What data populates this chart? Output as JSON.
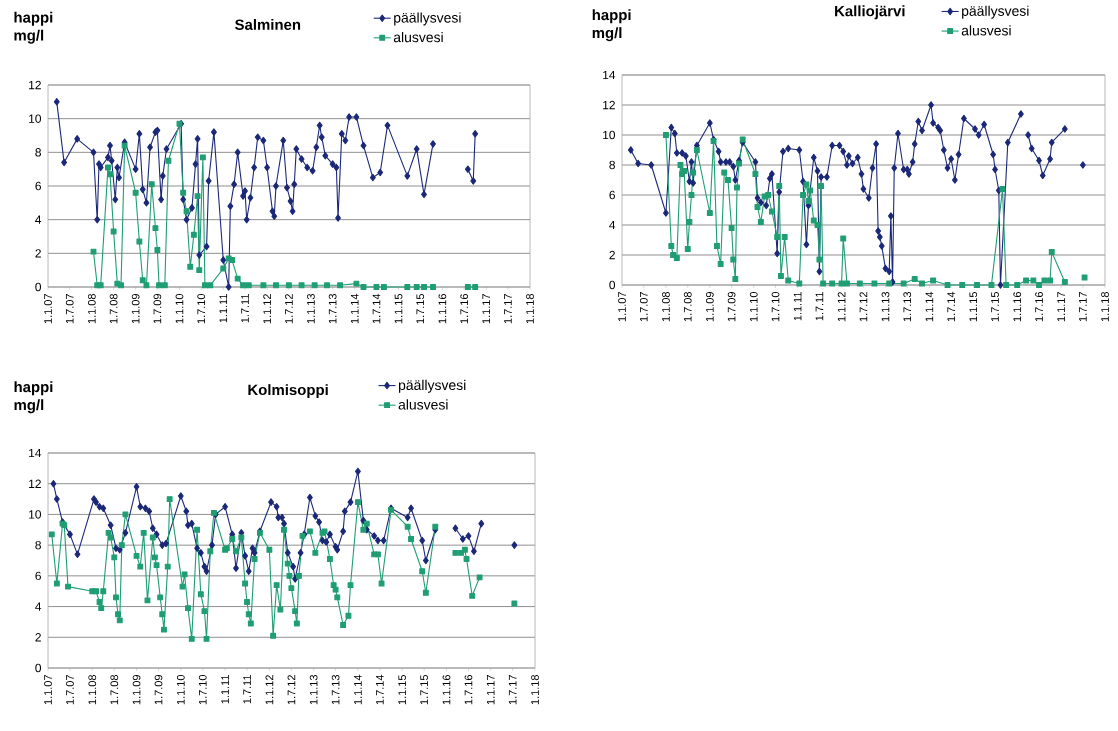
{
  "chart_data": [
    {
      "type": "line",
      "title": "Salminen",
      "ylabel": "happi mg/l",
      "xlim": [
        "2007-01-01",
        "2018-01-01"
      ],
      "xticks": [
        {
          "value": "2007-01-01",
          "label": "1.1.07"
        },
        {
          "value": "2007-07-01",
          "label": "1.7.07"
        },
        {
          "value": "2008-01-01",
          "label": "1.1.08"
        },
        {
          "value": "2008-07-01",
          "label": "1.7.08"
        },
        {
          "value": "2009-01-01",
          "label": "1.1.09"
        },
        {
          "value": "2009-07-01",
          "label": "1.7.09"
        },
        {
          "value": "2010-01-01",
          "label": "1.1.10"
        },
        {
          "value": "2010-07-01",
          "label": "1.7.10"
        },
        {
          "value": "2011-01-01",
          "label": "1.1.11"
        },
        {
          "value": "2011-07-01",
          "label": "1.7.11"
        },
        {
          "value": "2012-01-01",
          "label": "1.1.12"
        },
        {
          "value": "2012-07-01",
          "label": "1.7.12"
        },
        {
          "value": "2013-01-01",
          "label": "1.1.13"
        },
        {
          "value": "2013-07-01",
          "label": "1.7.13"
        },
        {
          "value": "2014-01-01",
          "label": "1.1.14"
        },
        {
          "value": "2014-07-01",
          "label": "1.7.14"
        },
        {
          "value": "2015-01-01",
          "label": "1.1.15"
        },
        {
          "value": "2015-07-01",
          "label": "1.7.15"
        },
        {
          "value": "2016-01-01",
          "label": "1.1.16"
        },
        {
          "value": "2016-07-01",
          "label": "1.7.16"
        },
        {
          "value": "2017-01-01",
          "label": "1.1.17"
        },
        {
          "value": "2017-07-01",
          "label": "1.7.17"
        },
        {
          "value": "2018-01-01",
          "label": "1.1.18"
        }
      ],
      "ylim": [
        0,
        12
      ],
      "yticks": [
        0,
        2,
        4,
        6,
        8,
        10,
        12
      ],
      "grid": "y",
      "legend": "top right",
      "series": [
        {
          "name": "päällysvesi",
          "color": "#1b2878",
          "marker": "diamond",
          "x": [
            "2007-03-15",
            "2007-05-15",
            "2007-09-01",
            "2008-01-15",
            "2008-02-15",
            "2008-03-01",
            "2008-03-15",
            "2008-05-15",
            "2008-06-01",
            "2008-06-15",
            "2008-07-15",
            "2008-08-01",
            "2008-08-15",
            "2008-10-01",
            "2009-01-01",
            "2009-02-01",
            "2009-03-01",
            "2009-04-01",
            "2009-05-01",
            "2009-06-15",
            "2009-07-01",
            "2009-08-01",
            "2009-08-15",
            "2009-09-15",
            "2010-01-15",
            "2010-02-01",
            "2010-03-01",
            "2010-04-15",
            "2010-05-15",
            "2010-06-01",
            "2010-06-15",
            "2010-08-15",
            "2010-09-01",
            "2010-10-15",
            "2011-01-01",
            "2011-02-15",
            "2011-03-01",
            "2011-04-01",
            "2011-05-01",
            "2011-06-15",
            "2011-07-01",
            "2011-07-15",
            "2011-08-15",
            "2011-09-15",
            "2011-10-15",
            "2011-12-01",
            "2012-01-01",
            "2012-02-15",
            "2012-03-01",
            "2012-03-15",
            "2012-05-15",
            "2012-06-15",
            "2012-07-15",
            "2012-08-01",
            "2012-08-15",
            "2012-09-01",
            "2012-10-15",
            "2012-12-01",
            "2013-01-15",
            "2013-02-15",
            "2013-03-15",
            "2013-04-01",
            "2013-05-01",
            "2013-07-01",
            "2013-08-01",
            "2013-08-15",
            "2013-09-15",
            "2013-10-15",
            "2013-11-15",
            "2014-01-15",
            "2014-03-15",
            "2014-06-01",
            "2014-08-01",
            "2014-10-01",
            "2015-03-15",
            "2015-06-01",
            "2015-08-01",
            "2015-10-15",
            "2016-01-01",
            "2016-08-01",
            "2016-09-15",
            "2016-10-01"
          ],
          "values": [
            11.0,
            7.4,
            8.8,
            8.0,
            4.0,
            7.3,
            7.1,
            7.7,
            8.4,
            7.5,
            5.2,
            7.1,
            6.5,
            8.6,
            7.0,
            9.1,
            5.8,
            5.0,
            8.3,
            9.2,
            9.3,
            5.2,
            6.6,
            8.2,
            9.7,
            5.2,
            4.0,
            4.7,
            7.3,
            8.8,
            1.9,
            2.4,
            6.3,
            9.2,
            1.6,
            0.0,
            4.8,
            6.1,
            8.0,
            5.4,
            5.7,
            4.0,
            5.3,
            7.1,
            8.9,
            8.7,
            7.1,
            4.5,
            4.2,
            6.0,
            8.7,
            5.9,
            5.1,
            4.5,
            6.1,
            8.2,
            7.6,
            7.1,
            6.9,
            8.3,
            9.6,
            8.9,
            7.8,
            7.3,
            7.1,
            4.1,
            9.1,
            8.7,
            10.1,
            10.1,
            8.4,
            6.5,
            6.8,
            9.6,
            6.6,
            8.2,
            5.5,
            8.5,
            null,
            7.0,
            6.3,
            9.1
          ]
        },
        {
          "name": "alusvesi",
          "color": "#1e9e72",
          "marker": "square",
          "x": [
            "2008-01-15",
            "2008-02-15",
            "2008-03-15",
            "2008-05-15",
            "2008-06-01",
            "2008-07-01",
            "2008-08-01",
            "2008-09-01",
            "2008-10-01",
            "2009-01-01",
            "2009-02-01",
            "2009-03-01",
            "2009-04-01",
            "2009-05-15",
            "2009-06-15",
            "2009-07-01",
            "2009-07-15",
            "2009-09-01",
            "2009-10-01",
            "2010-01-01",
            "2010-02-01",
            "2010-03-01",
            "2010-04-01",
            "2010-05-01",
            "2010-06-01",
            "2010-06-15",
            "2010-07-15",
            "2010-08-01",
            "2010-09-15",
            "2011-01-01",
            "2011-02-15",
            "2011-03-15",
            "2011-05-01",
            "2011-06-15",
            "2011-08-01",
            "2011-12-01",
            "2012-03-15",
            "2012-07-01",
            "2012-10-15",
            "2013-02-01",
            "2013-05-15",
            "2013-09-01",
            "2014-01-15",
            "2014-03-15",
            "2014-07-01",
            "2014-09-01",
            "2015-03-15",
            "2015-06-01",
            "2015-08-01",
            "2015-10-15",
            "2016-01-01",
            "2016-08-01",
            "2016-10-01"
          ],
          "values": [
            2.1,
            0.1,
            0.1,
            7.1,
            6.7,
            3.3,
            0.2,
            0.1,
            8.4,
            5.6,
            2.7,
            0.4,
            0.1,
            6.1,
            3.5,
            2.2,
            0.1,
            0.1,
            7.5,
            9.7,
            5.6,
            4.5,
            1.2,
            3.1,
            5.4,
            1.0,
            7.7,
            0.1,
            0.1,
            1.1,
            1.7,
            1.6,
            0.5,
            0.1,
            0.1,
            0.1,
            0.1,
            0.1,
            0.1,
            0.1,
            0.1,
            0.1,
            0.2,
            0.0,
            0.0,
            0.0,
            0.0,
            0.0,
            0.0,
            0.0,
            null,
            0.0,
            0.0
          ]
        }
      ]
    },
    {
      "type": "line",
      "title": "Kalliojärvi",
      "ylabel": "happi mg/l",
      "xlim": [
        "2007-01-01",
        "2018-01-01"
      ],
      "xticks": [
        {
          "value": "2007-01-01",
          "label": "1.1.07"
        },
        {
          "value": "2007-07-01",
          "label": "1.7.07"
        },
        {
          "value": "2008-01-01",
          "label": "1.1.08"
        },
        {
          "value": "2008-07-01",
          "label": "1.7.08"
        },
        {
          "value": "2009-01-01",
          "label": "1.1.09"
        },
        {
          "value": "2009-07-01",
          "label": "1.7.09"
        },
        {
          "value": "2010-01-01",
          "label": "1.1.10"
        },
        {
          "value": "2010-07-01",
          "label": "1.7.10"
        },
        {
          "value": "2011-01-01",
          "label": "1.1.11"
        },
        {
          "value": "2011-07-01",
          "label": "1.7.11"
        },
        {
          "value": "2012-01-01",
          "label": "1.1.12"
        },
        {
          "value": "2012-07-01",
          "label": "1.7.12"
        },
        {
          "value": "2013-01-01",
          "label": "1.1.13"
        },
        {
          "value": "2013-07-01",
          "label": "1.7.13"
        },
        {
          "value": "2014-01-01",
          "label": "1.1.14"
        },
        {
          "value": "2014-07-01",
          "label": "1.7.14"
        },
        {
          "value": "2015-01-01",
          "label": "1.1.15"
        },
        {
          "value": "2015-07-01",
          "label": "1.7.15"
        },
        {
          "value": "2016-01-01",
          "label": "1.1.16"
        },
        {
          "value": "2016-07-01",
          "label": "1.7.16"
        },
        {
          "value": "2017-01-01",
          "label": "1.1.17"
        },
        {
          "value": "2017-07-01",
          "label": "1.7.17"
        },
        {
          "value": "2018-01-01",
          "label": "1.1.18"
        }
      ],
      "ylim": [
        0,
        14
      ],
      "yticks": [
        0,
        2,
        4,
        6,
        8,
        10,
        12,
        14
      ],
      "grid": "y",
      "legend": "top right",
      "series": [
        {
          "name": "päällysvesi",
          "color": "#1b2878",
          "marker": "diamond",
          "x": [
            "2007-03-15",
            "2007-05-15",
            "2007-09-01",
            "2008-01-01",
            "2008-02-15",
            "2008-03-15",
            "2008-04-01",
            "2008-05-15",
            "2008-06-15",
            "2008-07-15",
            "2008-08-01",
            "2008-08-15",
            "2008-09-15",
            "2009-01-01",
            "2009-02-01",
            "2009-03-15",
            "2009-04-01",
            "2009-05-15",
            "2009-06-15",
            "2009-07-15",
            "2009-08-01",
            "2009-09-01",
            "2009-10-01",
            "2010-01-15",
            "2010-02-01",
            "2010-03-01",
            "2010-04-15",
            "2010-05-15",
            "2010-06-01",
            "2010-07-15",
            "2010-08-01",
            "2010-09-01",
            "2010-10-15",
            "2011-01-15",
            "2011-02-15",
            "2011-03-15",
            "2011-04-01",
            "2011-05-15",
            "2011-06-15",
            "2011-07-01",
            "2011-07-15",
            "2011-09-01",
            "2011-10-15",
            "2011-12-15",
            "2012-01-15",
            "2012-02-15",
            "2012-03-01",
            "2012-04-01",
            "2012-05-15",
            "2012-06-15",
            "2012-07-01",
            "2012-08-15",
            "2012-09-15",
            "2012-10-15",
            "2012-11-01",
            "2012-11-15",
            "2012-12-01",
            "2013-01-01",
            "2013-02-01",
            "2013-02-15",
            "2013-03-01",
            "2013-03-15",
            "2013-04-15",
            "2013-06-01",
            "2013-07-01",
            "2013-07-15",
            "2013-08-15",
            "2013-09-01",
            "2013-10-01",
            "2013-11-01",
            "2014-01-15",
            "2014-02-01",
            "2014-03-15",
            "2014-04-01",
            "2014-05-01",
            "2014-06-01",
            "2014-07-01",
            "2014-08-01",
            "2014-09-01",
            "2014-10-15",
            "2015-01-15",
            "2015-02-15",
            "2015-04-01",
            "2015-06-15",
            "2015-07-01",
            "2015-08-01",
            "2015-08-15",
            "2015-10-15",
            "2016-02-01",
            "2016-03-01",
            "2016-04-01",
            "2016-05-01",
            "2016-07-01",
            "2016-08-01",
            "2016-10-01",
            "2016-10-15",
            "2017-02-01",
            "2017-04-01",
            "2017-07-01"
          ],
          "values": [
            9.0,
            8.1,
            8.0,
            4.8,
            10.5,
            10.1,
            8.8,
            8.8,
            8.6,
            6.9,
            8.2,
            6.8,
            9.3,
            10.8,
            9.7,
            8.9,
            8.2,
            8.2,
            8.2,
            7.9,
            7.0,
            8.3,
            9.5,
            8.2,
            5.8,
            5.5,
            5.3,
            7.1,
            7.4,
            2.1,
            6.2,
            8.9,
            9.1,
            9.0,
            6.9,
            2.7,
            5.3,
            8.5,
            7.6,
            0.9,
            7.2,
            7.2,
            9.3,
            9.3,
            8.9,
            8.0,
            8.6,
            8.1,
            8.5,
            7.4,
            6.4,
            5.8,
            7.8,
            9.4,
            3.6,
            3.2,
            2.6,
            1.1,
            0.9,
            4.6,
            0.2,
            7.8,
            10.1,
            7.7,
            7.7,
            7.4,
            8.2,
            9.4,
            10.9,
            10.3,
            12.0,
            10.8,
            10.5,
            10.3,
            9.0,
            7.8,
            8.4,
            7.0,
            8.7,
            11.1,
            10.4,
            10.0,
            10.7,
            8.7,
            7.7,
            6.3,
            0.0,
            9.5,
            11.4,
            null,
            10.0,
            9.1,
            8.3,
            7.3,
            8.4,
            9.5,
            10.4,
            null,
            8.0
          ]
        },
        {
          "name": "alusvesi",
          "color": "#1e9e72",
          "marker": "square",
          "x": [
            "2008-01-01",
            "2008-02-15",
            "2008-03-01",
            "2008-04-01",
            "2008-05-01",
            "2008-05-15",
            "2008-06-01",
            "2008-07-01",
            "2008-07-15",
            "2008-08-01",
            "2008-08-15",
            "2008-09-15",
            "2009-01-01",
            "2009-02-01",
            "2009-03-01",
            "2009-04-01",
            "2009-05-01",
            "2009-06-01",
            "2009-07-01",
            "2009-07-15",
            "2009-08-01",
            "2009-08-15",
            "2009-09-01",
            "2009-10-01",
            "2010-01-15",
            "2010-02-01",
            "2010-03-01",
            "2010-04-01",
            "2010-05-01",
            "2010-06-01",
            "2010-07-15",
            "2010-08-01",
            "2010-08-15",
            "2010-09-15",
            "2010-10-15",
            "2011-01-15",
            "2011-02-15",
            "2011-03-15",
            "2011-04-01",
            "2011-04-15",
            "2011-05-15",
            "2011-06-15",
            "2011-07-01",
            "2011-07-15",
            "2011-08-01",
            "2011-10-15",
            "2012-01-01",
            "2012-01-15",
            "2012-02-15",
            "2012-06-01",
            "2012-10-01",
            "2013-02-01",
            "2013-06-01",
            "2013-09-01",
            "2013-11-01",
            "2014-02-01",
            "2014-06-01",
            "2014-10-01",
            "2015-02-01",
            "2015-06-01",
            "2015-09-01",
            "2015-10-01",
            "2016-01-01",
            "2016-03-15",
            "2016-05-15",
            "2016-07-01",
            "2016-08-15",
            "2016-10-01",
            "2016-10-15",
            "2017-02-01",
            "2017-04-01",
            "2017-07-15"
          ],
          "values": [
            10.0,
            2.6,
            2.0,
            1.8,
            8.0,
            7.4,
            7.6,
            2.4,
            4.2,
            6.0,
            7.5,
            9.0,
            4.8,
            9.6,
            2.6,
            1.4,
            7.5,
            7.0,
            3.8,
            1.7,
            0.4,
            6.5,
            8.1,
            9.7,
            7.4,
            5.2,
            4.2,
            5.9,
            6.0,
            4.9,
            3.2,
            6.6,
            0.6,
            3.2,
            0.3,
            0.1,
            6.0,
            6.7,
            5.6,
            6.3,
            4.3,
            4.0,
            1.7,
            6.6,
            0.1,
            0.1,
            0.1,
            3.1,
            0.1,
            0.1,
            0.1,
            0.1,
            0.1,
            0.4,
            0.1,
            0.3,
            0.0,
            0.0,
            0.0,
            0.0,
            6.4,
            0.0,
            0.0,
            0.3,
            0.3,
            0.0,
            0.3,
            0.3,
            2.2,
            0.2,
            null,
            0.5
          ]
        }
      ]
    },
    {
      "type": "line",
      "title": "Kolmisoppi",
      "ylabel": "happi mg/l",
      "xlim": [
        "2007-01-01",
        "2018-01-01"
      ],
      "xticks": [
        {
          "value": "2007-01-01",
          "label": "1.1.07"
        },
        {
          "value": "2007-07-01",
          "label": "1.7.07"
        },
        {
          "value": "2008-01-01",
          "label": "1.1.08"
        },
        {
          "value": "2008-07-01",
          "label": "1.7.08"
        },
        {
          "value": "2009-01-01",
          "label": "1.1.09"
        },
        {
          "value": "2009-07-01",
          "label": "1.7.09"
        },
        {
          "value": "2010-01-01",
          "label": "1.1.10"
        },
        {
          "value": "2010-07-01",
          "label": "1.7.10"
        },
        {
          "value": "2011-01-01",
          "label": "1.1.11"
        },
        {
          "value": "2011-07-01",
          "label": "1.7.11"
        },
        {
          "value": "2012-01-01",
          "label": "1.1.12"
        },
        {
          "value": "2012-07-01",
          "label": "1.7.12"
        },
        {
          "value": "2013-01-01",
          "label": "1.1.13"
        },
        {
          "value": "2013-07-01",
          "label": "1.7.13"
        },
        {
          "value": "2014-01-01",
          "label": "1.1.14"
        },
        {
          "value": "2014-07-01",
          "label": "1.7.14"
        },
        {
          "value": "2015-01-01",
          "label": "1.1.15"
        },
        {
          "value": "2015-07-01",
          "label": "1.7.15"
        },
        {
          "value": "2016-01-01",
          "label": "1.1.16"
        },
        {
          "value": "2016-07-01",
          "label": "1.7.16"
        },
        {
          "value": "2017-01-01",
          "label": "1.1.17"
        },
        {
          "value": "2017-07-01",
          "label": "1.7.17"
        },
        {
          "value": "2018-01-01",
          "label": "1.1.18"
        }
      ],
      "ylim": [
        0,
        14
      ],
      "yticks": [
        0,
        2,
        4,
        6,
        8,
        10,
        12,
        14
      ],
      "grid": "y",
      "legend": "top right",
      "series": [
        {
          "name": "päällysvesi",
          "color": "#1b2878",
          "marker": "diamond",
          "x": [
            "2007-02-15",
            "2007-03-15",
            "2007-05-01",
            "2007-07-01",
            "2007-09-01",
            "2008-01-15",
            "2008-02-01",
            "2008-03-01",
            "2008-04-01",
            "2008-06-01",
            "2008-07-15",
            "2008-08-15",
            "2008-10-01",
            "2009-01-01",
            "2009-02-01",
            "2009-03-15",
            "2009-04-15",
            "2009-05-15",
            "2009-06-15",
            "2009-08-01",
            "2009-09-01",
            "2010-01-01",
            "2010-02-15",
            "2010-03-01",
            "2010-04-01",
            "2010-05-15",
            "2010-06-15",
            "2010-07-15",
            "2010-08-01",
            "2010-09-15",
            "2010-10-15",
            "2011-01-01",
            "2011-03-01",
            "2011-04-01",
            "2011-05-15",
            "2011-06-15",
            "2011-07-15",
            "2011-08-15",
            "2011-09-01",
            "2011-10-15",
            "2012-01-15",
            "2012-03-01",
            "2012-03-15",
            "2012-04-15",
            "2012-05-01",
            "2012-06-01",
            "2012-07-15",
            "2012-08-01",
            "2012-09-15",
            "2012-10-15",
            "2012-12-01",
            "2013-01-15",
            "2013-02-15",
            "2013-03-15",
            "2013-04-15",
            "2013-05-15",
            "2013-07-01",
            "2013-07-15",
            "2013-09-01",
            "2013-09-15",
            "2013-11-01",
            "2014-01-01",
            "2014-02-15",
            "2014-03-15",
            "2014-05-15",
            "2014-06-15",
            "2014-08-01",
            "2014-10-01",
            "2015-02-15",
            "2015-03-15",
            "2015-06-15",
            "2015-07-15",
            "2015-10-01",
            "2016-01-01",
            "2016-03-15",
            "2016-05-15",
            "2016-07-01",
            "2016-08-15",
            "2016-10-15",
            "2017-03-01",
            "2017-07-15"
          ],
          "values": [
            12.0,
            11.0,
            9.5,
            8.7,
            7.4,
            11.0,
            10.8,
            10.5,
            10.4,
            9.3,
            7.8,
            7.7,
            8.8,
            11.8,
            10.5,
            10.4,
            10.2,
            9.1,
            8.7,
            8.0,
            8.1,
            11.2,
            10.2,
            9.3,
            9.4,
            7.8,
            7.5,
            6.6,
            6.3,
            8.0,
            10.0,
            10.5,
            8.7,
            6.5,
            8.8,
            7.3,
            6.3,
            7.8,
            7.5,
            8.9,
            10.8,
            10.5,
            9.8,
            9.8,
            9.4,
            7.5,
            6.6,
            5.8,
            7.5,
            8.7,
            11.1,
            9.9,
            9.5,
            8.3,
            8.2,
            8.7,
            7.9,
            7.7,
            8.9,
            10.2,
            10.8,
            12.8,
            9.6,
            9.0,
            8.6,
            8.3,
            8.3,
            10.4,
            9.8,
            10.4,
            8.3,
            7.0,
            9.0,
            null,
            9.1,
            8.4,
            8.6,
            7.6,
            9.4,
            null,
            8.0
          ]
        },
        {
          "name": "alusvesi",
          "color": "#1e9e72",
          "marker": "square",
          "x": [
            "2007-02-01",
            "2007-03-15",
            "2007-05-01",
            "2007-05-15",
            "2007-06-15",
            "2008-01-01",
            "2008-02-01",
            "2008-03-01",
            "2008-03-15",
            "2008-04-01",
            "2008-05-15",
            "2008-06-01",
            "2008-07-01",
            "2008-07-15",
            "2008-08-01",
            "2008-08-15",
            "2008-09-01",
            "2008-10-01",
            "2009-01-01",
            "2009-02-01",
            "2009-03-01",
            "2009-04-01",
            "2009-05-15",
            "2009-06-01",
            "2009-06-15",
            "2009-07-15",
            "2009-08-01",
            "2009-08-15",
            "2009-09-15",
            "2009-10-01",
            "2010-01-15",
            "2010-02-01",
            "2010-03-01",
            "2010-04-01",
            "2010-05-15",
            "2010-06-15",
            "2010-07-15",
            "2010-08-01",
            "2010-09-01",
            "2010-10-01",
            "2011-01-01",
            "2011-01-15",
            "2011-03-01",
            "2011-04-01",
            "2011-05-15",
            "2011-06-15",
            "2011-07-01",
            "2011-07-15",
            "2011-08-01",
            "2011-09-01",
            "2011-10-15",
            "2012-01-01",
            "2012-02-01",
            "2012-03-01",
            "2012-04-01",
            "2012-05-01",
            "2012-06-01",
            "2012-06-15",
            "2012-07-01",
            "2012-08-01",
            "2012-08-15",
            "2012-09-01",
            "2012-10-01",
            "2012-12-01",
            "2013-01-15",
            "2013-03-15",
            "2013-04-01",
            "2013-05-15",
            "2013-06-15",
            "2013-07-01",
            "2013-07-15",
            "2013-09-01",
            "2013-10-15",
            "2013-11-01",
            "2014-01-01",
            "2014-02-15",
            "2014-03-15",
            "2014-05-15",
            "2014-06-15",
            "2014-07-15",
            "2014-10-01",
            "2015-02-15",
            "2015-03-15",
            "2015-06-15",
            "2015-07-15",
            "2015-10-01",
            "2016-01-01",
            "2016-03-15",
            "2016-05-01",
            "2016-06-01",
            "2016-06-15",
            "2016-08-01",
            "2016-10-01",
            "2017-03-01",
            "2017-07-15"
          ],
          "values": [
            8.7,
            5.5,
            9.4,
            9.3,
            5.3,
            5.0,
            5.0,
            4.3,
            3.9,
            5.0,
            8.8,
            8.5,
            7.2,
            4.6,
            3.5,
            3.1,
            8.0,
            10.0,
            7.3,
            6.6,
            8.8,
            4.4,
            8.5,
            7.2,
            6.7,
            4.6,
            3.5,
            2.5,
            6.6,
            11.0,
            5.3,
            6.1,
            3.9,
            1.9,
            9.0,
            4.8,
            3.7,
            1.9,
            7.6,
            10.1,
            7.7,
            7.8,
            8.4,
            7.6,
            8.5,
            5.5,
            4.3,
            3.5,
            2.9,
            7.1,
            8.8,
            7.7,
            2.1,
            5.4,
            3.8,
            9.0,
            6.8,
            6.0,
            5.2,
            3.7,
            2.9,
            6.0,
            8.6,
            8.9,
            7.5,
            8.8,
            8.9,
            7.1,
            5.4,
            5.1,
            4.6,
            2.8,
            3.4,
            5.4,
            10.8,
            9.0,
            9.4,
            7.4,
            7.4,
            5.5,
            10.3,
            9.2,
            8.4,
            6.3,
            4.9,
            9.2,
            null,
            7.5,
            7.5,
            7.7,
            7.1,
            4.7,
            5.9,
            null,
            4.2
          ]
        }
      ]
    }
  ]
}
